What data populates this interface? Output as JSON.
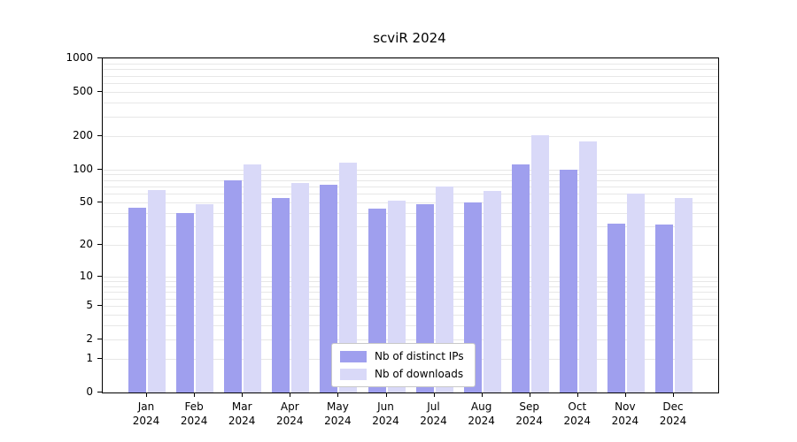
{
  "title": "scviR 2024",
  "chart_data": {
    "type": "bar",
    "scale": "symlog",
    "title": "scviR 2024",
    "xlabel": "",
    "ylabel": "",
    "year": "2024",
    "categories": [
      "Jan",
      "Feb",
      "Mar",
      "Apr",
      "May",
      "Jun",
      "Jul",
      "Aug",
      "Sep",
      "Oct",
      "Nov",
      "Dec"
    ],
    "series": [
      {
        "name": "Nb of distinct IPs",
        "color": "#9f9fee",
        "values": [
          45,
          40,
          80,
          55,
          72,
          44,
          48,
          50,
          110,
          100,
          32,
          31
        ]
      },
      {
        "name": "Nb of downloads",
        "color": "#d9d9f8",
        "values": [
          65,
          48,
          110,
          75,
          115,
          52,
          70,
          64,
          202,
          180,
          60,
          55
        ]
      }
    ],
    "y_ticks": [
      0,
      1,
      2,
      5,
      10,
      20,
      50,
      100,
      200,
      500,
      1000
    ],
    "minor_gridlines": [
      3,
      4,
      6,
      7,
      8,
      9,
      30,
      40,
      60,
      70,
      80,
      90,
      300,
      400,
      600,
      700,
      800,
      900
    ],
    "ylim": [
      0,
      1000
    ],
    "grid": true,
    "legend_position": "inside-bottom-center",
    "colors": {
      "axis": "#000000",
      "gridline": "#e7e7e7",
      "background": "#ffffff",
      "legend_border": "#c8c8c8"
    }
  }
}
